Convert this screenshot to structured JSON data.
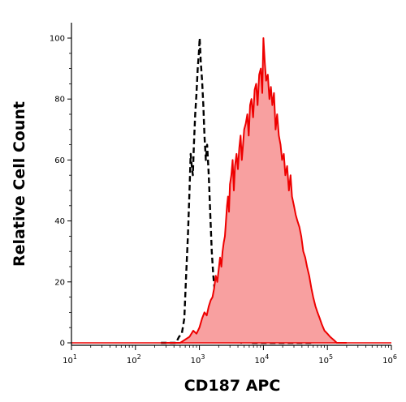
{
  "chart_data": {
    "type": "area",
    "xlabel": "CD187 APC",
    "ylabel": "Relative Cell Count",
    "xscale": "log",
    "xlim": [
      10,
      1000000
    ],
    "ylim": [
      0,
      100
    ],
    "grid": false,
    "x_ticks": [
      {
        "base": "10",
        "exp": "1"
      },
      {
        "base": "10",
        "exp": "2"
      },
      {
        "base": "10",
        "exp": "3"
      },
      {
        "base": "10",
        "exp": "4"
      },
      {
        "base": "10",
        "exp": "5"
      },
      {
        "base": "10",
        "exp": "6"
      }
    ],
    "x_tick_values": [
      10,
      100,
      1000,
      10000,
      100000,
      1000000
    ],
    "y_ticks": [
      "0",
      "20",
      "40",
      "60",
      "80",
      "100"
    ],
    "y_tick_values": [
      0,
      20,
      40,
      60,
      80,
      100
    ],
    "series": [
      {
        "style": "dashed",
        "color": "#000000",
        "x": [
          250,
          320,
          380,
          430,
          480,
          530,
          580,
          620,
          660,
          700,
          730,
          760,
          790,
          820,
          860,
          900,
          940,
          980,
          1010,
          1050,
          1100,
          1150,
          1200,
          1260,
          1320,
          1400,
          1480,
          1560,
          1650,
          1750,
          1850,
          1980,
          2100,
          2250,
          2400,
          2600,
          2800,
          3000,
          3300,
          3600,
          4000,
          4500,
          5000,
          6000,
          8000,
          10000,
          20000,
          40000,
          60000
        ],
        "y": [
          0,
          0,
          0,
          0,
          2,
          3,
          8,
          22,
          35,
          50,
          62,
          58,
          55,
          65,
          75,
          82,
          90,
          95,
          100,
          92,
          86,
          78,
          68,
          60,
          65,
          55,
          42,
          30,
          22,
          16,
          10,
          7,
          5,
          3,
          6,
          2,
          3,
          1,
          4,
          1,
          2,
          0,
          1,
          0,
          0,
          0,
          0,
          0,
          0
        ]
      },
      {
        "style": "filled",
        "color": "#ee0000",
        "fill": "#f8a0a0",
        "x": [
          300,
          500,
          700,
          800,
          900,
          1000,
          1100,
          1200,
          1300,
          1400,
          1500,
          1600,
          1700,
          1800,
          1900,
          2000,
          2100,
          2200,
          2300,
          2400,
          2500,
          2600,
          2700,
          2800,
          2900,
          3000,
          3150,
          3300,
          3450,
          3600,
          3800,
          4000,
          4200,
          4400,
          4600,
          4800,
          5000,
          5300,
          5600,
          5900,
          6200,
          6500,
          6900,
          7300,
          7700,
          8100,
          8600,
          9100,
          9600,
          10000,
          10500,
          11000,
          11700,
          12400,
          13100,
          13800,
          14600,
          15500,
          16400,
          17400,
          18500,
          19600,
          20800,
          22000,
          23500,
          25000,
          26500,
          28000,
          30000,
          32000,
          34000,
          36500,
          39000,
          42000,
          45000,
          48000,
          52000,
          56000,
          60000,
          65000,
          70000,
          76000,
          82000,
          90000,
          100000,
          110000,
          125000,
          140000,
          160000,
          200000
        ],
        "y": [
          0,
          0,
          2,
          4,
          3,
          5,
          8,
          10,
          9,
          12,
          14,
          15,
          18,
          22,
          20,
          24,
          28,
          25,
          30,
          33,
          35,
          40,
          45,
          48,
          43,
          52,
          55,
          60,
          50,
          58,
          62,
          57,
          64,
          68,
          60,
          65,
          70,
          72,
          75,
          68,
          78,
          80,
          74,
          83,
          85,
          78,
          88,
          90,
          82,
          100,
          92,
          86,
          88,
          80,
          84,
          78,
          82,
          70,
          75,
          68,
          65,
          60,
          62,
          55,
          58,
          50,
          55,
          48,
          45,
          42,
          40,
          38,
          35,
          30,
          28,
          25,
          22,
          18,
          15,
          12,
          10,
          8,
          6,
          4,
          3,
          2,
          1,
          0,
          0,
          0
        ]
      }
    ]
  }
}
